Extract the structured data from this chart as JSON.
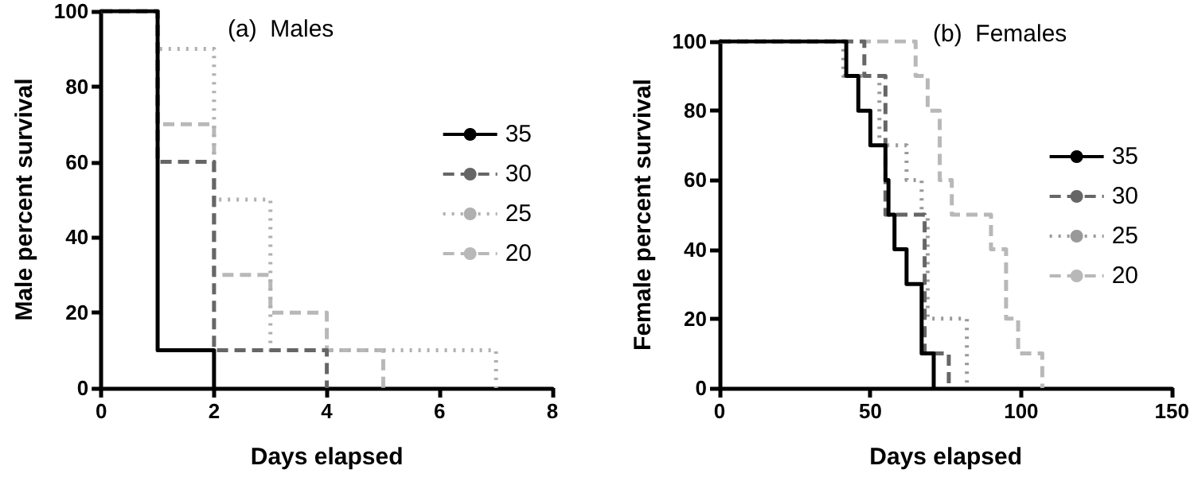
{
  "chart_data": [
    {
      "type": "step",
      "title": "(a)  Males",
      "xlabel": "Days elapsed",
      "ylabel": "Male percent survival",
      "xlim": [
        0,
        8
      ],
      "xticks": [
        0,
        2,
        4,
        6,
        8
      ],
      "ylim": [
        0,
        100
      ],
      "yticks": [
        0,
        20,
        40,
        60,
        80,
        100
      ],
      "grid": false,
      "legend": "right",
      "marker": "none",
      "series": [
        {
          "name": "35",
          "color": "#000000",
          "line_style": "solid",
          "x": [
            0,
            1,
            2
          ],
          "values": [
            100,
            10,
            0
          ]
        },
        {
          "name": "30",
          "color": "#666666",
          "line_style": "dashed",
          "x": [
            0,
            1,
            2,
            4
          ],
          "values": [
            100,
            60,
            10,
            0
          ]
        },
        {
          "name": "25",
          "color": "#b0b0b0",
          "line_style": "dotted",
          "x": [
            0,
            1,
            2,
            3,
            7
          ],
          "values": [
            100,
            90,
            50,
            10,
            0
          ]
        },
        {
          "name": "20",
          "color": "#b8b8b8",
          "line_style": "dashed",
          "x": [
            0,
            1,
            2,
            3,
            4,
            5
          ],
          "values": [
            100,
            70,
            30,
            20,
            10,
            0
          ]
        }
      ]
    },
    {
      "type": "step",
      "title": "(b)  Females",
      "xlabel": "Days elapsed",
      "ylabel": "Female percent survival",
      "xlim": [
        0,
        150
      ],
      "xticks": [
        0,
        50,
        100,
        150
      ],
      "ylim": [
        0,
        100
      ],
      "yticks": [
        0,
        20,
        40,
        60,
        80,
        100
      ],
      "grid": false,
      "legend": "right",
      "marker": "none",
      "series": [
        {
          "name": "35",
          "color": "#000000",
          "line_style": "solid",
          "x": [
            0,
            42,
            46,
            50,
            55,
            56,
            58,
            62,
            67,
            71
          ],
          "values": [
            100,
            90,
            80,
            70,
            60,
            50,
            40,
            30,
            10,
            0
          ]
        },
        {
          "name": "30",
          "color": "#666666",
          "line_style": "dashed",
          "x": [
            0,
            48,
            55,
            68,
            76
          ],
          "values": [
            100,
            90,
            50,
            10,
            0
          ]
        },
        {
          "name": "25",
          "color": "#999999",
          "line_style": "dotted",
          "x": [
            0,
            41,
            53,
            62,
            67,
            69,
            82
          ],
          "values": [
            100,
            90,
            70,
            60,
            50,
            20,
            0
          ]
        },
        {
          "name": "20",
          "color": "#b8b8b8",
          "line_style": "dashed",
          "x": [
            0,
            65,
            69,
            73,
            77,
            90,
            95,
            99,
            107
          ],
          "values": [
            100,
            90,
            80,
            60,
            50,
            40,
            20,
            10,
            0
          ]
        }
      ]
    }
  ]
}
